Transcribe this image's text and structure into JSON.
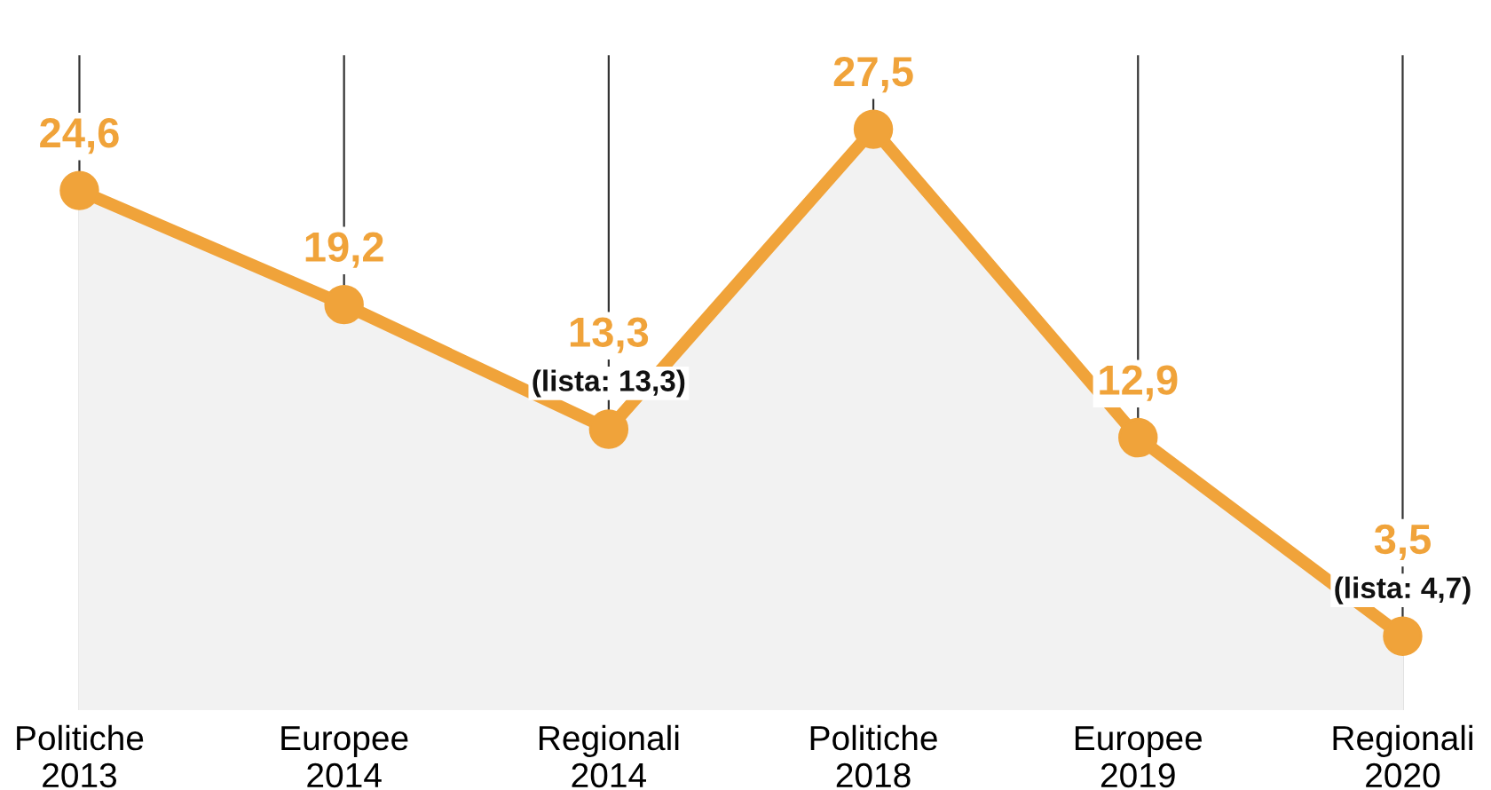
{
  "chart_data": {
    "type": "area",
    "categories": [
      "Politiche\n2013",
      "Europee\n2014",
      "Regionali\n2014",
      "Politiche\n2018",
      "Europee\n2019",
      "Regionali\n2020"
    ],
    "series": [
      {
        "color": "#f0a33a",
        "values": [
          24.6,
          19.2,
          13.3,
          27.5,
          12.9,
          3.5
        ],
        "value_labels": [
          "24,6",
          "19,2",
          "13,3\n(lista: 13,3)",
          "27,5",
          "12,9",
          "3,5\n(lista: 4,7)"
        ]
      }
    ],
    "ylim": [
      0,
      31
    ],
    "grid": "x",
    "marker": "circle",
    "line_style": "solid",
    "tick_labels": "x"
  }
}
